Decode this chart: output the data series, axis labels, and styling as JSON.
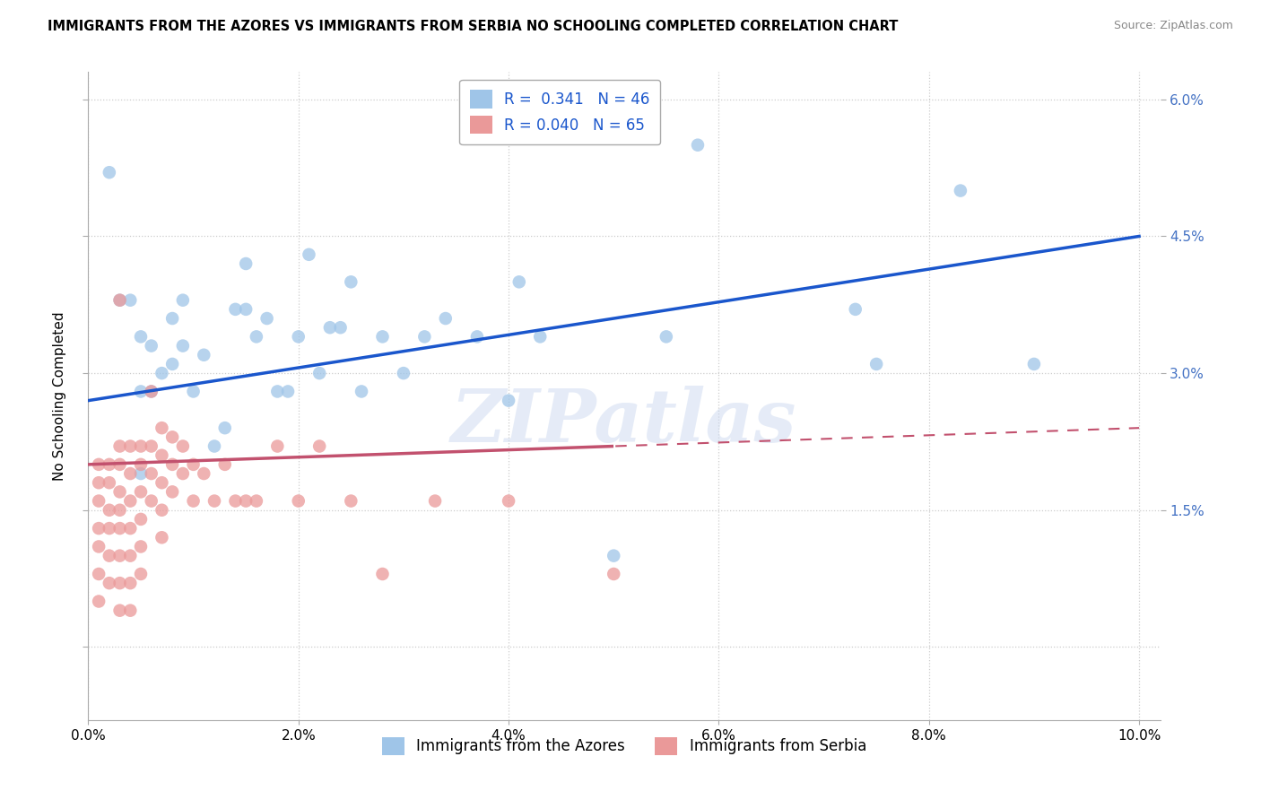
{
  "title": "IMMIGRANTS FROM THE AZORES VS IMMIGRANTS FROM SERBIA NO SCHOOLING COMPLETED CORRELATION CHART",
  "source": "Source: ZipAtlas.com",
  "xlim": [
    0.0,
    0.102
  ],
  "ylim": [
    -0.008,
    0.063
  ],
  "ylabel": "No Schooling Completed",
  "legend_labels": [
    "Immigrants from the Azores",
    "Immigrants from Serbia"
  ],
  "r_azores": "0.341",
  "n_azores": "46",
  "r_serbia": "0.040",
  "n_serbia": "65",
  "color_azores": "#9fc5e8",
  "color_serbia": "#ea9999",
  "line_color_azores": "#1a56cc",
  "line_color_serbia": "#c2516e",
  "watermark": "ZIPatlas",
  "ytick_color": "#4472c4",
  "azores_x": [
    0.002,
    0.003,
    0.004,
    0.005,
    0.005,
    0.006,
    0.006,
    0.007,
    0.008,
    0.008,
    0.009,
    0.009,
    0.01,
    0.011,
    0.012,
    0.013,
    0.014,
    0.015,
    0.015,
    0.016,
    0.017,
    0.018,
    0.019,
    0.02,
    0.021,
    0.022,
    0.023,
    0.024,
    0.025,
    0.026,
    0.028,
    0.03,
    0.032,
    0.034,
    0.037,
    0.04,
    0.041,
    0.043,
    0.05,
    0.055,
    0.058,
    0.073,
    0.075,
    0.083,
    0.09,
    0.005
  ],
  "azores_y": [
    0.052,
    0.038,
    0.038,
    0.028,
    0.034,
    0.033,
    0.028,
    0.03,
    0.031,
    0.036,
    0.033,
    0.038,
    0.028,
    0.032,
    0.022,
    0.024,
    0.037,
    0.037,
    0.042,
    0.034,
    0.036,
    0.028,
    0.028,
    0.034,
    0.043,
    0.03,
    0.035,
    0.035,
    0.04,
    0.028,
    0.034,
    0.03,
    0.034,
    0.036,
    0.034,
    0.027,
    0.04,
    0.034,
    0.01,
    0.034,
    0.055,
    0.037,
    0.031,
    0.05,
    0.031,
    0.019
  ],
  "serbia_x": [
    0.001,
    0.001,
    0.001,
    0.001,
    0.001,
    0.001,
    0.001,
    0.002,
    0.002,
    0.002,
    0.002,
    0.002,
    0.002,
    0.003,
    0.003,
    0.003,
    0.003,
    0.003,
    0.003,
    0.003,
    0.003,
    0.004,
    0.004,
    0.004,
    0.004,
    0.004,
    0.004,
    0.004,
    0.005,
    0.005,
    0.005,
    0.005,
    0.005,
    0.005,
    0.006,
    0.006,
    0.006,
    0.006,
    0.007,
    0.007,
    0.007,
    0.007,
    0.007,
    0.008,
    0.008,
    0.008,
    0.009,
    0.009,
    0.01,
    0.01,
    0.011,
    0.012,
    0.013,
    0.014,
    0.015,
    0.016,
    0.018,
    0.02,
    0.022,
    0.025,
    0.028,
    0.033,
    0.04,
    0.05,
    0.003
  ],
  "serbia_y": [
    0.02,
    0.018,
    0.016,
    0.013,
    0.011,
    0.008,
    0.005,
    0.02,
    0.018,
    0.015,
    0.013,
    0.01,
    0.007,
    0.022,
    0.02,
    0.017,
    0.015,
    0.013,
    0.01,
    0.007,
    0.004,
    0.022,
    0.019,
    0.016,
    0.013,
    0.01,
    0.007,
    0.004,
    0.022,
    0.02,
    0.017,
    0.014,
    0.011,
    0.008,
    0.028,
    0.022,
    0.019,
    0.016,
    0.024,
    0.021,
    0.018,
    0.015,
    0.012,
    0.023,
    0.02,
    0.017,
    0.022,
    0.019,
    0.02,
    0.016,
    0.019,
    0.016,
    0.02,
    0.016,
    0.016,
    0.016,
    0.022,
    0.016,
    0.022,
    0.016,
    0.008,
    0.016,
    0.016,
    0.008,
    0.038
  ]
}
